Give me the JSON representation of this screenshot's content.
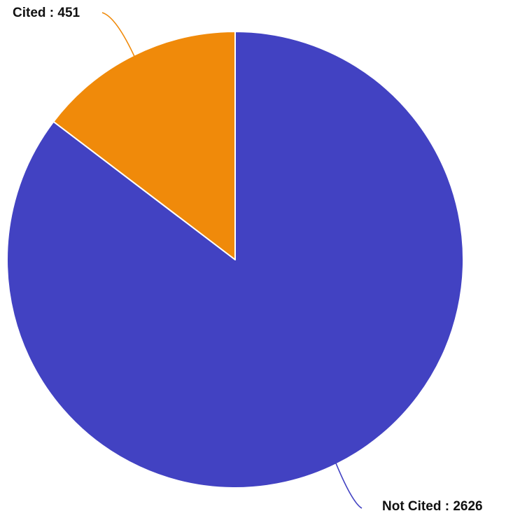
{
  "chart_data": {
    "type": "pie",
    "title": "",
    "slices": [
      {
        "label": "Not Cited",
        "value": 2626,
        "color": "#4242C2",
        "label_text": "Not Cited : 2626"
      },
      {
        "label": "Cited",
        "value": 451,
        "color": "#F08A0A",
        "label_text": "Cited : 451"
      }
    ],
    "legend": "none",
    "start_angle": "12 o'clock",
    "direction": "clockwise"
  }
}
